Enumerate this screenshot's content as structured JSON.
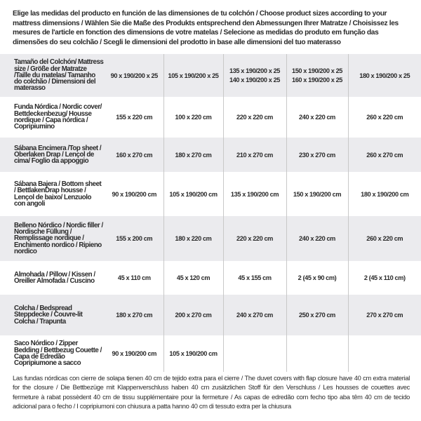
{
  "intro": "Elige las medidas del producto en función de las dimensiones de tu colchón / Choose product sizes according to your mattress dimensions / Wählen Sie die Maße des Produkts entsprechend den Abmessungen Ihrer Matratze / Choisissez les mesures de l'article en fonction des dimensions de votre matelas / Selecione as medidas do produto em função das dimensões do seu colchão / Scegli le dimensioni del prodotto in base alle dimensioni del tuo materasso",
  "table": {
    "header": {
      "label": "Tamaño del Colchón/ Mattress size / Größe der Matratze /Taille du matelas/ Tamanho do colchão / Dimensioni del materasso",
      "cols": [
        "90 x 190/200 x 25",
        "105 x 190/200 x 25",
        [
          "135 x 190/200 x 25",
          "140 x 190/200 x 25"
        ],
        [
          "150 x 190/200 x 25",
          "160 x 190/200 x 25"
        ],
        "180 x 190/200 x 25"
      ]
    },
    "rows": [
      {
        "label": "Funda Nórdica /  Nordic cover/ Bettdeckenbezug/ Housse nordique  / Capa nórdica / Copripiumino",
        "values": [
          "155 x 220 cm",
          "100 x 220 cm",
          "220 x 220 cm",
          "240 x 220 cm",
          "260 x 220 cm"
        ]
      },
      {
        "label": "Sábana Encimera /Top sheet / Oberlaken Drap / Lençol de cima/ Foglio da appoggio",
        "values": [
          "160 x 270 cm",
          "180 x 270 cm",
          "210 x 270 cm",
          "230 x 270 cm",
          "260 x 270 cm"
        ]
      },
      {
        "label": "Sábana Bajera / Bottom sheet / BettlakenDrap housse / Lençol de baixo/ Lenzuolo con angoli",
        "values": [
          "90 x 190/200 cm",
          "105 x 190/200 cm",
          "135 x 190/200 cm",
          "150 x 190/200 cm",
          "180 x 190/200 cm"
        ]
      },
      {
        "label": "Belleno Nórdico / Nordic filler / Nordische Füllung / Remplissage nordique / Enchimento nordico / Ripieno nordico",
        "values": [
          "155 x 200 cm",
          "180 x 220 cm",
          "220 x 220 cm",
          "240 x 220 cm",
          "260 x 220 cm"
        ]
      },
      {
        "label": "Almohada  / Pillow / Kissen / Oreiller Almofada / Cuscino",
        "values": [
          "45 x 110 cm",
          "45 x 120 cm",
          "45 x 155 cm",
          "2 (45 x 90 cm)",
          "2 (45 x 110 cm)"
        ]
      },
      {
        "label": "Colcha / Bedspread Steppdecke / Couvre-lit Colcha / Trapunta",
        "values": [
          "180 x 270 cm",
          "200 x 270 cm",
          "240 x 270 cm",
          "250 x 270 cm",
          "270 x 270 cm"
        ]
      },
      {
        "label": "Saco Nórdico / Zipper Bedding / Bettbezug Couette  / Capa de Edredão Copripiumone a sacco",
        "values": [
          "90 x 190/200 cm",
          "105 x 190/200 cm",
          "",
          "",
          ""
        ]
      }
    ]
  },
  "note": "Las fundas nórdicas con cierre de solapa tienen 40 cm de tejido extra para el cierre  / The duvet covers with flap closure have 40 cm extra material for the closure / Die Bettbezüge mit Klappenverschluss haben 40 cm zusätzlichen Stoff für den Verschluss / Les housses de couettes avec fermeture à rabat possèdent 40 cm de tissu supplémentaire pour la fermeture / As capas de edredão com fecho tipo aba têm 40 cm de tecido adicional para o fecho / I copripiumoni con chiusura a patta hanno 40 cm di tessuto extra per la chiusura"
}
